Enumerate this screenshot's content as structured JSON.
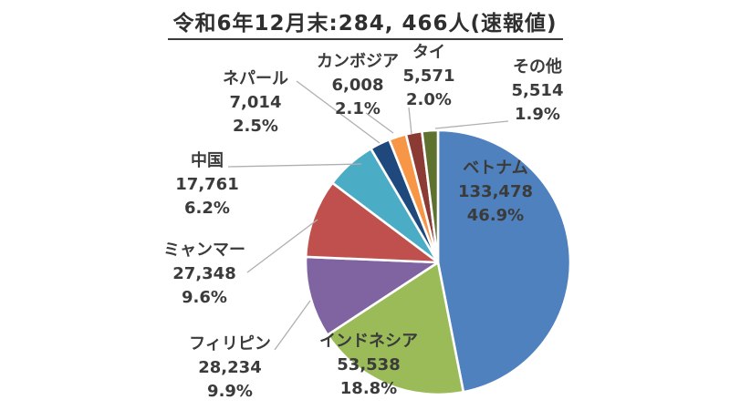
{
  "title": "令和6年12月末:284, 466人(速報値)",
  "chart_data": {
    "type": "pie",
    "title": "令和6年12月末:284, 466人(速報値)",
    "total": 284466,
    "total_text": "284, 466人",
    "unit": "人",
    "note": "速報値",
    "start_angle_deg": 0,
    "direction": "clockwise",
    "legend_position": "none",
    "label_style": "callout-labels-with-value-and-percent",
    "background_color": "#ffffff",
    "slice_border_color": "#ffffff",
    "leader_line_color": "#b0b0b0",
    "label_text_color": "#3b3b3b",
    "series": [
      {
        "name": "ベトナム",
        "value": 133478,
        "value_text": "133,478",
        "percent_text": "46.9%",
        "color": "#4e81bd"
      },
      {
        "name": "インドネシア",
        "value": 53538,
        "value_text": "53,538",
        "percent_text": "18.8%",
        "color": "#9bbb59"
      },
      {
        "name": "フィリピン",
        "value": 28234,
        "value_text": "28,234",
        "percent_text": "9.9%",
        "color": "#8064a2"
      },
      {
        "name": "ミャンマー",
        "value": 27348,
        "value_text": "27,348",
        "percent_text": "9.6%",
        "color": "#c0504d"
      },
      {
        "name": "中国",
        "value": 17761,
        "value_text": "17,761",
        "percent_text": "6.2%",
        "color": "#4bacc6"
      },
      {
        "name": "ネパール",
        "value": 7014,
        "value_text": "7,014",
        "percent_text": "2.5%",
        "color": "#1f497d"
      },
      {
        "name": "カンボジア",
        "value": 6008,
        "value_text": "6,008",
        "percent_text": "2.1%",
        "color": "#f79646"
      },
      {
        "name": "タイ",
        "value": 5571,
        "value_text": "5,571",
        "percent_text": "2.0%",
        "color": "#8b3a34"
      },
      {
        "name": "その他",
        "value": 5514,
        "value_text": "5,514",
        "percent_text": "1.9%",
        "color": "#5e712f"
      }
    ]
  }
}
